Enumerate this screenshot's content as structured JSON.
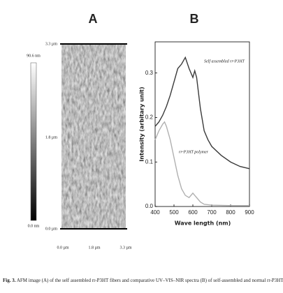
{
  "panel_a": {
    "label": "A",
    "colorbar_labels": [
      "90.6 nm",
      "0.0 nm"
    ],
    "y_labels": [
      "3.3 µm",
      "1.8 µm",
      "0.0 µm"
    ],
    "x_labels": [
      "0.0 µm",
      "1.8 µm",
      "3.3 µm"
    ]
  },
  "chart_data": {
    "type": "line",
    "panel_label": "B",
    "xlabel": "Wave length (nm)",
    "ylabel": "Intensity (arbitary unit)",
    "xlim": [
      400,
      900
    ],
    "xticks": [
      400,
      500,
      600,
      700,
      800,
      900
    ],
    "ylim": [
      0,
      0.37
    ],
    "yticks": [
      {
        "value": 0,
        "label": "0.0"
      },
      0.1,
      0.2,
      0.3
    ],
    "series": [
      {
        "name": "Self assembled rr-P3HT",
        "color": "#3a3a3a",
        "x": [
          400,
          420,
          440,
          460,
          480,
          500,
          520,
          540,
          560,
          580,
          600,
          610,
          620,
          640,
          660,
          680,
          700,
          750,
          800,
          850,
          900
        ],
        "values": [
          0.18,
          0.19,
          0.205,
          0.225,
          0.25,
          0.28,
          0.31,
          0.32,
          0.335,
          0.31,
          0.29,
          0.305,
          0.29,
          0.22,
          0.17,
          0.15,
          0.135,
          0.115,
          0.1,
          0.09,
          0.085
        ]
      },
      {
        "name": "rr-P3HT polymer",
        "color": "#b0b0b0",
        "x": [
          400,
          420,
          440,
          450,
          460,
          480,
          500,
          520,
          540,
          560,
          580,
          600,
          610,
          620,
          640,
          660,
          700,
          800,
          900
        ],
        "values": [
          0.15,
          0.17,
          0.185,
          0.19,
          0.18,
          0.15,
          0.11,
          0.07,
          0.04,
          0.025,
          0.02,
          0.03,
          0.025,
          0.02,
          0.01,
          0.005,
          0.003,
          0.002,
          0.002
        ]
      }
    ]
  },
  "caption": {
    "label": "Fig. 3.",
    "text": "AFM image (A) of the self assembled rr-P3HT fibers and comparative UV–VIS–NIR spectra (B) of self-assembled and normal rr-P3HT."
  }
}
